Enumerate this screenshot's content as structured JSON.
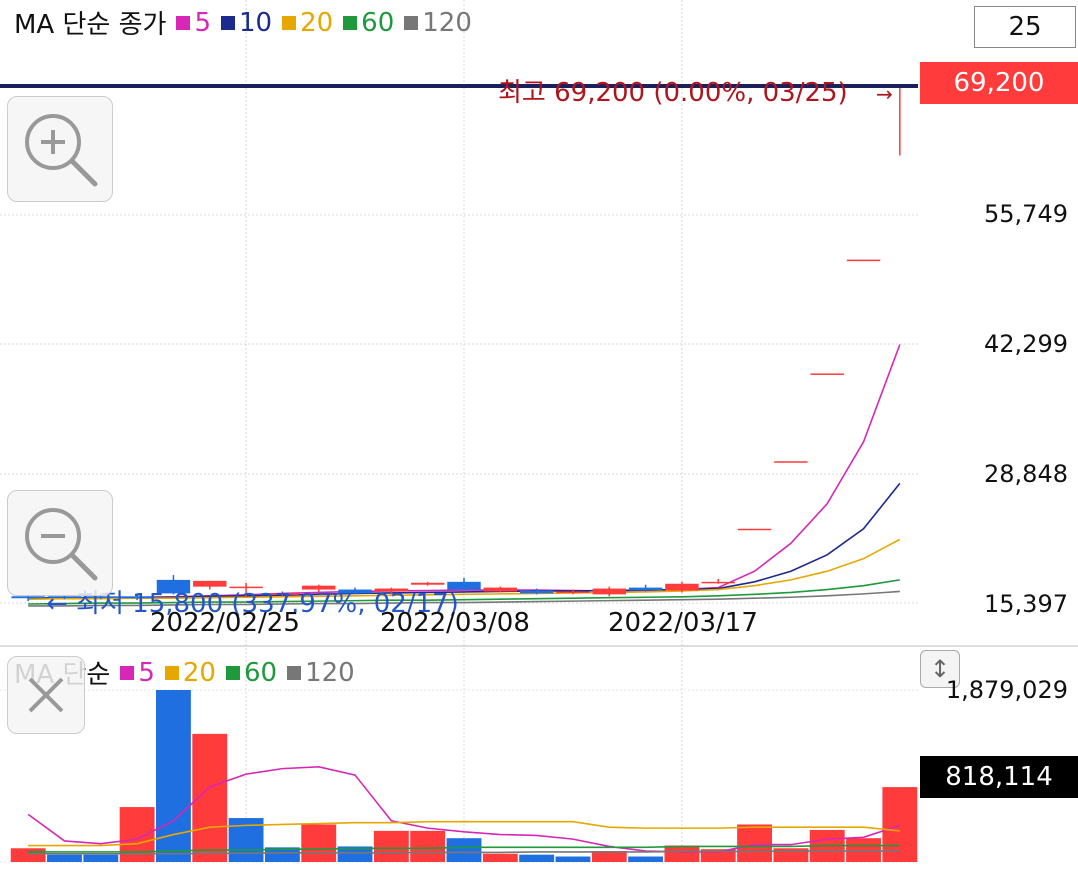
{
  "price_panel": {
    "legend": {
      "title": "MA 단순 종가",
      "items": [
        {
          "label": "5",
          "color": "#d627b7"
        },
        {
          "label": "10",
          "color": "#1b2a8f"
        },
        {
          "label": "20",
          "color": "#e6a800"
        },
        {
          "label": "60",
          "color": "#1e9a3c"
        },
        {
          "label": "120",
          "color": "#777777"
        }
      ]
    },
    "period_box": "25",
    "current_price": "69,200",
    "high_label": "최고 69,200 (0.00%, 03/25)",
    "high_arrow": "→",
    "low_label": "← 최저 15,800 (337.97%, 02/17)",
    "y_axis_labels": [
      "55,749",
      "42,299",
      "28,848",
      "15,397"
    ],
    "x_axis_labels": [
      "2022/02/25",
      "2022/03/08",
      "2022/03/17"
    ]
  },
  "volume_panel": {
    "legend": {
      "title": "MA 단순",
      "items": [
        {
          "label": "5",
          "color": "#d627b7"
        },
        {
          "label": "20",
          "color": "#e6a800"
        },
        {
          "label": "60",
          "color": "#1e9a3c"
        },
        {
          "label": "120",
          "color": "#777777"
        }
      ]
    },
    "y_axis_top": "1,879,029",
    "current_volume": "818,114"
  },
  "icons": {
    "zoom_in": "zoom-in-icon",
    "zoom_out": "zoom-out-icon",
    "close": "close-icon",
    "scale": "vertical-arrows-icon"
  },
  "colors": {
    "up": "#ff3b3b",
    "down": "#1f6fe0",
    "current_line": "#1b1f5c",
    "volume_value_bg": "#000000"
  },
  "chart_data": {
    "type": "candlestick",
    "price_ylim": [
      15397,
      69200
    ],
    "candles": [
      {
        "o": 16300,
        "h": 16400,
        "l": 15800,
        "c": 16100
      },
      {
        "o": 16300,
        "h": 16400,
        "l": 16000,
        "c": 16200
      },
      {
        "o": 16300,
        "h": 16500,
        "l": 16000,
        "c": 16200
      },
      {
        "o": 16300,
        "h": 16600,
        "l": 15900,
        "c": 16100
      },
      {
        "o": 18000,
        "h": 18500,
        "l": 16500,
        "c": 16600
      },
      {
        "o": 17300,
        "h": 17900,
        "l": 17000,
        "c": 17900
      },
      {
        "o": 17300,
        "h": 17700,
        "l": 16200,
        "c": 17300
      },
      {
        "o": 16600,
        "h": 16800,
        "l": 16300,
        "c": 16600
      },
      {
        "o": 17000,
        "h": 17500,
        "l": 16700,
        "c": 17400
      },
      {
        "o": 17000,
        "h": 17200,
        "l": 16500,
        "c": 16600
      },
      {
        "o": 16800,
        "h": 17200,
        "l": 16500,
        "c": 17100
      },
      {
        "o": 17500,
        "h": 17800,
        "l": 17400,
        "c": 17700
      },
      {
        "o": 17800,
        "h": 18200,
        "l": 16900,
        "c": 17000
      },
      {
        "o": 16800,
        "h": 17300,
        "l": 16700,
        "c": 17200
      },
      {
        "o": 16900,
        "h": 17100,
        "l": 16500,
        "c": 16600
      },
      {
        "o": 16800,
        "h": 17000,
        "l": 16500,
        "c": 16800
      },
      {
        "o": 16500,
        "h": 17300,
        "l": 16300,
        "c": 17100
      },
      {
        "o": 17200,
        "h": 17500,
        "l": 16800,
        "c": 16900
      },
      {
        "o": 16900,
        "h": 17800,
        "l": 16700,
        "c": 17600
      },
      {
        "o": 17800,
        "h": 18100,
        "l": 17600,
        "c": 17800
      },
      {
        "o": 23300,
        "h": 23300,
        "l": 23300,
        "c": 23300
      },
      {
        "o": 30300,
        "h": 30300,
        "l": 30300,
        "c": 30300
      },
      {
        "o": 39400,
        "h": 39400,
        "l": 39400,
        "c": 39400
      },
      {
        "o": 51200,
        "h": 51200,
        "l": 51200,
        "c": 51200
      },
      {
        "o": 69200,
        "h": 69200,
        "l": 62000,
        "c": 69200
      }
    ],
    "ma": {
      "5": [
        16050,
        16100,
        16150,
        16200,
        16250,
        16350,
        16450,
        16600,
        16700,
        16800,
        16850,
        16900,
        16950,
        16950,
        16950,
        16900,
        16850,
        16900,
        17000,
        17200,
        18900,
        21800,
        25900,
        32300,
        42400
      ],
      "10": [
        16100,
        16150,
        16150,
        16200,
        16200,
        16300,
        16350,
        16400,
        16500,
        16600,
        16650,
        16700,
        16750,
        16800,
        16850,
        16850,
        16900,
        16950,
        17000,
        17100,
        17800,
        18900,
        20600,
        23300,
        28000
      ],
      "20": [
        16000,
        16050,
        16050,
        16100,
        16100,
        16150,
        16200,
        16250,
        16300,
        16350,
        16400,
        16450,
        16500,
        16550,
        16600,
        16650,
        16700,
        16750,
        16850,
        17000,
        17400,
        18000,
        18900,
        20200,
        22200
      ],
      "60": [
        15500,
        15550,
        15600,
        15600,
        15650,
        15700,
        15700,
        15750,
        15800,
        15850,
        15900,
        15900,
        15950,
        16000,
        16050,
        16100,
        16150,
        16200,
        16250,
        16350,
        16500,
        16700,
        17000,
        17400,
        18000
      ],
      "120": [
        15300,
        15300,
        15350,
        15350,
        15400,
        15450,
        15450,
        15500,
        15550,
        15550,
        15600,
        15650,
        15650,
        15700,
        15750,
        15800,
        15850,
        15900,
        15950,
        16000,
        16100,
        16200,
        16350,
        16550,
        16800
      ]
    },
    "volume_ylim": [
      0,
      1879029
    ],
    "volumes": [
      {
        "v": 150000,
        "up": true
      },
      {
        "v": 80000,
        "up": false
      },
      {
        "v": 80000,
        "up": false
      },
      {
        "v": 600000,
        "up": true
      },
      {
        "v": 1879029,
        "up": false
      },
      {
        "v": 1400000,
        "up": true
      },
      {
        "v": 480000,
        "up": false
      },
      {
        "v": 160000,
        "up": false
      },
      {
        "v": 410000,
        "up": true
      },
      {
        "v": 170000,
        "up": false
      },
      {
        "v": 340000,
        "up": true
      },
      {
        "v": 340000,
        "up": true
      },
      {
        "v": 260000,
        "up": false
      },
      {
        "v": 90000,
        "up": true
      },
      {
        "v": 80000,
        "up": false
      },
      {
        "v": 60000,
        "up": false
      },
      {
        "v": 120000,
        "up": true
      },
      {
        "v": 60000,
        "up": false
      },
      {
        "v": 180000,
        "up": true
      },
      {
        "v": 140000,
        "up": true
      },
      {
        "v": 410000,
        "up": true
      },
      {
        "v": 150000,
        "up": true
      },
      {
        "v": 350000,
        "up": true
      },
      {
        "v": 260000,
        "up": true
      },
      {
        "v": 818114,
        "up": true
      }
    ],
    "volume_ma": {
      "5": [
        520000,
        230000,
        200000,
        250000,
        450000,
        820000,
        960000,
        1020000,
        1040000,
        950000,
        450000,
        370000,
        330000,
        300000,
        290000,
        250000,
        170000,
        120000,
        110000,
        110000,
        190000,
        190000,
        250000,
        270000,
        400000
      ],
      "20": [
        180000,
        180000,
        180000,
        200000,
        300000,
        380000,
        400000,
        410000,
        420000,
        430000,
        430000,
        440000,
        440000,
        440000,
        440000,
        440000,
        380000,
        370000,
        370000,
        370000,
        380000,
        380000,
        380000,
        380000,
        340000
      ],
      "60": [
        110000,
        110000,
        110000,
        110000,
        120000,
        130000,
        130000,
        140000,
        140000,
        150000,
        150000,
        150000,
        160000,
        160000,
        160000,
        160000,
        160000,
        160000,
        170000,
        170000,
        170000,
        170000,
        180000,
        180000,
        180000
      ],
      "120": [
        90000,
        90000,
        90000,
        90000,
        90000,
        95000,
        95000,
        100000,
        100000,
        100000,
        100000,
        105000,
        105000,
        105000,
        110000,
        110000,
        110000,
        110000,
        115000,
        115000,
        115000,
        120000,
        120000,
        120000,
        120000
      ]
    },
    "x_ticks": [
      {
        "index": 6,
        "label": "2022/02/25"
      },
      {
        "index": 12,
        "label": "2022/03/08"
      },
      {
        "index": 18,
        "label": "2022/03/17"
      }
    ]
  }
}
